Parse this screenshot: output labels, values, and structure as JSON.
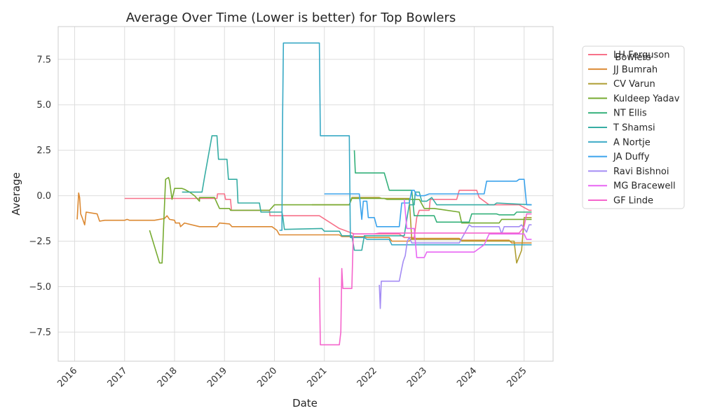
{
  "chart_data": {
    "type": "line",
    "title": "Average Over Time (Lower is better) for Top Bowlers",
    "xlabel": "Date",
    "ylabel": "Average",
    "x_ticks": [
      "2016",
      "2017",
      "2018",
      "2019",
      "2020",
      "2021",
      "2022",
      "2023",
      "2024",
      "2025"
    ],
    "y_ticks": [
      "−7.5",
      "−5.0",
      "−2.5",
      "0.0",
      "2.5",
      "5.0",
      "7.5"
    ],
    "y_tick_values": [
      -7.5,
      -5.0,
      -2.5,
      0.0,
      2.5,
      5.0,
      7.5
    ],
    "xlim": [
      2015.67,
      2025.58
    ],
    "ylim": [
      -9.1,
      9.3
    ],
    "grid": true,
    "legend_title": "Bowlers",
    "legend_position": "outside-upper-right",
    "series": [
      {
        "name": "LH Ferguson",
        "color": "#f77189",
        "points": [
          [
            2017.0,
            -0.15
          ],
          [
            2018.85,
            -0.15
          ],
          [
            2018.86,
            0.1
          ],
          [
            2019.0,
            0.1
          ],
          [
            2019.02,
            -0.2
          ],
          [
            2019.12,
            -0.2
          ],
          [
            2019.14,
            -0.8
          ],
          [
            2019.9,
            -0.8
          ],
          [
            2019.91,
            -1.1
          ],
          [
            2020.8,
            -1.1
          ],
          [
            2020.9,
            -1.1
          ],
          [
            2021.3,
            -1.8
          ],
          [
            2021.6,
            -2.1
          ],
          [
            2022.5,
            -2.1
          ],
          [
            2022.6,
            -2.3
          ],
          [
            2022.8,
            -2.3
          ],
          [
            2022.85,
            -1.2
          ],
          [
            2022.9,
            -0.8
          ],
          [
            2023.1,
            -0.8
          ],
          [
            2023.12,
            -0.2
          ],
          [
            2023.65,
            -0.2
          ],
          [
            2023.7,
            0.3
          ],
          [
            2024.05,
            0.3
          ],
          [
            2024.1,
            -0.1
          ],
          [
            2024.3,
            -0.5
          ],
          [
            2024.9,
            -0.5
          ],
          [
            2025.1,
            -0.8
          ],
          [
            2025.15,
            -0.8
          ]
        ]
      },
      {
        "name": "JJ Bumrah",
        "color": "#dc8932",
        "points": [
          [
            2016.05,
            -1.3
          ],
          [
            2016.08,
            0.15
          ],
          [
            2016.1,
            -0.1
          ],
          [
            2016.12,
            -1.0
          ],
          [
            2016.15,
            -1.2
          ],
          [
            2016.2,
            -1.6
          ],
          [
            2016.23,
            -0.9
          ],
          [
            2016.45,
            -1.0
          ],
          [
            2016.5,
            -1.4
          ],
          [
            2016.6,
            -1.35
          ],
          [
            2017.0,
            -1.35
          ],
          [
            2017.05,
            -1.3
          ],
          [
            2017.1,
            -1.35
          ],
          [
            2017.6,
            -1.35
          ],
          [
            2017.8,
            -1.25
          ],
          [
            2017.85,
            -1.1
          ],
          [
            2017.9,
            -1.3
          ],
          [
            2018.0,
            -1.35
          ],
          [
            2018.02,
            -1.5
          ],
          [
            2018.1,
            -1.5
          ],
          [
            2018.12,
            -1.7
          ],
          [
            2018.2,
            -1.5
          ],
          [
            2018.5,
            -1.7
          ],
          [
            2018.85,
            -1.7
          ],
          [
            2018.9,
            -1.5
          ],
          [
            2019.1,
            -1.55
          ],
          [
            2019.15,
            -1.7
          ],
          [
            2019.95,
            -1.7
          ],
          [
            2020.05,
            -1.9
          ],
          [
            2020.1,
            -2.15
          ],
          [
            2021.3,
            -2.15
          ],
          [
            2021.35,
            -2.25
          ],
          [
            2021.8,
            -2.25
          ],
          [
            2021.85,
            -2.3
          ],
          [
            2022.3,
            -2.3
          ],
          [
            2022.35,
            -2.5
          ],
          [
            2022.7,
            -2.5
          ],
          [
            2022.75,
            -2.35
          ],
          [
            2023.7,
            -2.35
          ],
          [
            2023.75,
            -2.45
          ],
          [
            2024.7,
            -2.45
          ],
          [
            2024.75,
            -2.6
          ],
          [
            2025.15,
            -2.6
          ]
        ]
      },
      {
        "name": "CV Varun",
        "color": "#ae9d31",
        "points": [
          [
            2020.75,
            -0.5
          ],
          [
            2021.5,
            -0.5
          ],
          [
            2021.55,
            -0.1
          ],
          [
            2022.1,
            -0.1
          ],
          [
            2022.15,
            -0.15
          ],
          [
            2022.7,
            -0.15
          ],
          [
            2022.75,
            -2.4
          ],
          [
            2023.7,
            -2.4
          ],
          [
            2023.75,
            -2.5
          ],
          [
            2024.8,
            -2.5
          ],
          [
            2024.85,
            -3.7
          ],
          [
            2024.95,
            -3.0
          ],
          [
            2025.0,
            -1.2
          ],
          [
            2025.15,
            -1.2
          ]
        ]
      },
      {
        "name": "Kuldeep Yadav",
        "color": "#77ab31",
        "points": [
          [
            2017.5,
            -1.9
          ],
          [
            2017.7,
            -3.7
          ],
          [
            2017.75,
            -3.7
          ],
          [
            2017.82,
            0.9
          ],
          [
            2017.88,
            1.0
          ],
          [
            2017.9,
            0.8
          ],
          [
            2017.95,
            -0.2
          ],
          [
            2018.0,
            0.4
          ],
          [
            2018.15,
            0.4
          ],
          [
            2018.2,
            0.35
          ],
          [
            2018.3,
            0.2
          ],
          [
            2018.4,
            0.0
          ],
          [
            2018.5,
            -0.3
          ],
          [
            2018.5,
            -0.1
          ],
          [
            2018.8,
            -0.1
          ],
          [
            2018.85,
            -0.4
          ],
          [
            2018.9,
            -0.7
          ],
          [
            2019.1,
            -0.7
          ],
          [
            2019.12,
            -0.8
          ],
          [
            2019.9,
            -0.8
          ],
          [
            2020.0,
            -0.5
          ],
          [
            2021.5,
            -0.5
          ],
          [
            2021.55,
            -0.15
          ],
          [
            2022.2,
            -0.15
          ],
          [
            2022.25,
            -0.2
          ],
          [
            2022.9,
            -0.2
          ],
          [
            2023.0,
            -0.7
          ],
          [
            2023.2,
            -0.7
          ],
          [
            2023.7,
            -0.9
          ],
          [
            2023.75,
            -1.5
          ],
          [
            2024.5,
            -1.5
          ],
          [
            2024.55,
            -1.3
          ],
          [
            2025.15,
            -1.3
          ]
        ]
      },
      {
        "name": "NT Ellis",
        "color": "#33b07a",
        "points": [
          [
            2021.6,
            2.5
          ],
          [
            2021.62,
            1.25
          ],
          [
            2022.2,
            1.25
          ],
          [
            2022.3,
            0.3
          ],
          [
            2022.75,
            0.3
          ],
          [
            2022.8,
            -1.1
          ],
          [
            2023.2,
            -1.1
          ],
          [
            2023.25,
            -1.45
          ],
          [
            2023.9,
            -1.45
          ],
          [
            2023.95,
            -1.0
          ],
          [
            2024.45,
            -1.0
          ],
          [
            2024.5,
            -1.05
          ],
          [
            2024.8,
            -1.05
          ],
          [
            2024.85,
            -0.9
          ],
          [
            2025.15,
            -0.9
          ]
        ]
      },
      {
        "name": "T Shamsi",
        "color": "#36ada4",
        "points": [
          [
            2018.15,
            0.2
          ],
          [
            2018.55,
            0.2
          ],
          [
            2018.6,
            1.0
          ],
          [
            2018.75,
            3.3
          ],
          [
            2018.85,
            3.3
          ],
          [
            2018.88,
            2.0
          ],
          [
            2019.05,
            2.0
          ],
          [
            2019.08,
            0.9
          ],
          [
            2019.25,
            0.9
          ],
          [
            2019.27,
            -0.4
          ],
          [
            2019.7,
            -0.4
          ],
          [
            2019.73,
            -0.9
          ],
          [
            2020.15,
            -0.9
          ],
          [
            2020.17,
            -1.2
          ],
          [
            2020.2,
            -1.85
          ],
          [
            2020.95,
            -1.8
          ],
          [
            2021.0,
            -1.95
          ],
          [
            2021.3,
            -1.95
          ],
          [
            2021.35,
            -2.2
          ],
          [
            2021.55,
            -2.2
          ],
          [
            2021.6,
            -3.0
          ],
          [
            2021.75,
            -3.0
          ],
          [
            2021.8,
            -2.2
          ],
          [
            2022.6,
            -2.2
          ],
          [
            2022.65,
            -1.3
          ],
          [
            2022.7,
            -0.5
          ],
          [
            2022.8,
            -0.5
          ],
          [
            2022.82,
            0.2
          ],
          [
            2022.9,
            0.2
          ],
          [
            2022.95,
            -0.3
          ],
          [
            2023.05,
            -0.3
          ],
          [
            2023.1,
            -0.2
          ],
          [
            2023.15,
            -0.1
          ],
          [
            2023.25,
            -0.5
          ],
          [
            2024.4,
            -0.5
          ],
          [
            2024.45,
            -0.4
          ],
          [
            2025.15,
            -0.5
          ]
        ]
      },
      {
        "name": "A Nortje",
        "color": "#38a9c5",
        "points": [
          [
            2020.1,
            -1.9
          ],
          [
            2020.15,
            -1.9
          ],
          [
            2020.16,
            3.5
          ],
          [
            2020.18,
            8.4
          ],
          [
            2020.9,
            8.4
          ],
          [
            2020.92,
            3.3
          ],
          [
            2021.5,
            3.3
          ],
          [
            2021.52,
            -2.3
          ],
          [
            2021.8,
            -2.3
          ],
          [
            2021.85,
            -2.4
          ],
          [
            2022.3,
            -2.4
          ],
          [
            2022.35,
            -2.7
          ],
          [
            2025.15,
            -2.7
          ]
        ]
      },
      {
        "name": "JA Duffy",
        "color": "#3ba3ec",
        "points": [
          [
            2021.0,
            0.1
          ],
          [
            2021.7,
            0.1
          ],
          [
            2021.75,
            -1.3
          ],
          [
            2021.78,
            -0.3
          ],
          [
            2021.85,
            -0.3
          ],
          [
            2021.88,
            -1.2
          ],
          [
            2022.0,
            -1.2
          ],
          [
            2022.05,
            -1.7
          ],
          [
            2022.5,
            -1.7
          ],
          [
            2022.55,
            -0.4
          ],
          [
            2022.7,
            -0.4
          ],
          [
            2022.75,
            0.3
          ],
          [
            2022.8,
            0.3
          ],
          [
            2022.85,
            0.0
          ],
          [
            2023.0,
            0.0
          ],
          [
            2023.1,
            0.1
          ],
          [
            2024.2,
            0.1
          ],
          [
            2024.25,
            0.8
          ],
          [
            2024.85,
            0.8
          ],
          [
            2024.9,
            0.9
          ],
          [
            2025.0,
            0.9
          ],
          [
            2025.05,
            -0.5
          ],
          [
            2025.15,
            -0.5
          ]
        ]
      },
      {
        "name": "Ravi Bishnoi",
        "color": "#a48cf4",
        "points": [
          [
            2022.1,
            -4.9
          ],
          [
            2022.12,
            -6.2
          ],
          [
            2022.14,
            -4.7
          ],
          [
            2022.5,
            -4.7
          ],
          [
            2022.55,
            -4.0
          ],
          [
            2022.58,
            -3.6
          ],
          [
            2022.62,
            -3.3
          ],
          [
            2022.66,
            -2.5
          ],
          [
            2022.7,
            -2.3
          ],
          [
            2022.75,
            -2.6
          ],
          [
            2023.7,
            -2.6
          ],
          [
            2023.8,
            -2.1
          ],
          [
            2023.9,
            -1.6
          ],
          [
            2023.95,
            -1.7
          ],
          [
            2024.5,
            -1.7
          ],
          [
            2024.55,
            -2.1
          ],
          [
            2024.6,
            -1.7
          ],
          [
            2024.9,
            -1.7
          ],
          [
            2024.95,
            -1.6
          ],
          [
            2025.0,
            -1.8
          ],
          [
            2025.05,
            -2.0
          ],
          [
            2025.1,
            -1.6
          ],
          [
            2025.15,
            -1.6
          ]
        ]
      },
      {
        "name": "MG Bracewell",
        "color": "#e866f4",
        "points": [
          [
            2022.6,
            -0.2
          ],
          [
            2022.65,
            -1.8
          ],
          [
            2022.8,
            -1.8
          ],
          [
            2022.85,
            -3.4
          ],
          [
            2022.9,
            -3.4
          ],
          [
            2023.0,
            -3.4
          ],
          [
            2023.05,
            -3.1
          ],
          [
            2024.0,
            -3.1
          ],
          [
            2024.1,
            -2.9
          ],
          [
            2024.2,
            -2.7
          ],
          [
            2024.3,
            -2.1
          ],
          [
            2024.8,
            -2.1
          ],
          [
            2025.0,
            -2.1
          ],
          [
            2025.05,
            -2.4
          ],
          [
            2025.15,
            -2.4
          ]
        ]
      },
      {
        "name": "GF Linde",
        "color": "#f565cc",
        "points": [
          [
            2020.9,
            -4.5
          ],
          [
            2020.92,
            -8.2
          ],
          [
            2021.3,
            -8.2
          ],
          [
            2021.33,
            -7.5
          ],
          [
            2021.35,
            -4.0
          ],
          [
            2021.37,
            -5.1
          ],
          [
            2021.55,
            -5.1
          ],
          [
            2021.58,
            -2.1
          ],
          [
            2021.62,
            -2.1
          ],
          [
            2022.0,
            -2.1
          ],
          [
            2022.1,
            -2.05
          ],
          [
            2024.6,
            -2.05
          ],
          [
            2024.7,
            -2.05
          ],
          [
            2024.9,
            -2.05
          ],
          [
            2025.0,
            -1.7
          ],
          [
            2025.05,
            -1.0
          ],
          [
            2025.15,
            -1.0
          ]
        ]
      }
    ]
  }
}
